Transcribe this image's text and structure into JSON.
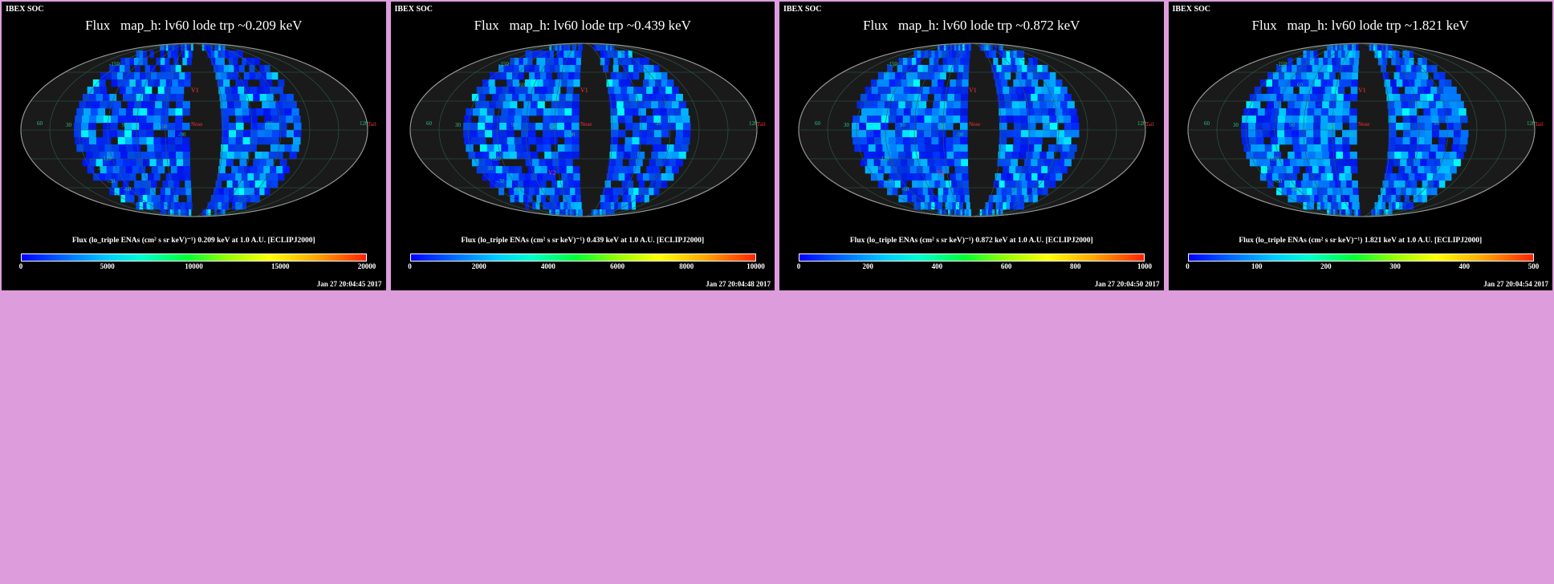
{
  "page": {
    "background": "#dd9ddd"
  },
  "panels": [
    {
      "org": "IBEX SOC",
      "title": "Flux   map_h: lv60 lode trp ~0.209 keV",
      "colorbar_label": "Flux (lo_triple ENAs (cm² s sr keV)⁻¹)  0.209 keV at 1.0 A.U. [ECLIPJ2000]",
      "ticks": [
        "0",
        "5000",
        "10000",
        "15000",
        "20000"
      ],
      "timestamp": "Jan 27 20:04:45 2017",
      "brightness": 0.0
    },
    {
      "org": "IBEX SOC",
      "title": "Flux   map_h: lv60 lode trp ~0.439 keV",
      "colorbar_label": "Flux (lo_triple ENAs (cm² s sr keV)⁻¹)  0.439 keV at 1.0 A.U. [ECLIPJ2000]",
      "ticks": [
        "0",
        "2000",
        "4000",
        "6000",
        "8000",
        "10000"
      ],
      "timestamp": "Jan 27 20:04:48 2017",
      "brightness": 0.1
    },
    {
      "org": "IBEX SOC",
      "title": "Flux   map_h: lv60 lode trp ~0.872 keV",
      "colorbar_label": "Flux (lo_triple ENAs (cm² s sr keV)⁻¹)  0.872 keV at 1.0 A.U. [ECLIPJ2000]",
      "ticks": [
        "0",
        "200",
        "400",
        "600",
        "800",
        "1000"
      ],
      "timestamp": "Jan 27 20:04:50 2017",
      "brightness": 0.3
    },
    {
      "org": "IBEX SOC",
      "title": "Flux   map_h: lv60 lode trp ~1.821 keV",
      "colorbar_label": "Flux (lo_triple ENAs (cm² s sr keV)⁻¹)  1.821 keV at 1.0 A.U. [ECLIPJ2000]",
      "ticks": [
        "0",
        "100",
        "200",
        "300",
        "400",
        "500"
      ],
      "timestamp": "Jan 27 20:04:54 2017",
      "brightness": 0.6
    }
  ],
  "map_labels": {
    "v1": "V1",
    "v2": "V2",
    "nose": "Nose",
    "tail": "Tail",
    "grid_labels": [
      "60",
      "30",
      "90",
      "90",
      "120",
      "150",
      "-90",
      "-120",
      "-150",
      "60",
      "30",
      "-30",
      "-60"
    ]
  },
  "colors": {
    "panel_bg": "#000000",
    "sky_bg": "#1a1a1a",
    "grid": "#2f5f4f",
    "grid_label": "#2ec27e",
    "marker": "#ff3333"
  }
}
